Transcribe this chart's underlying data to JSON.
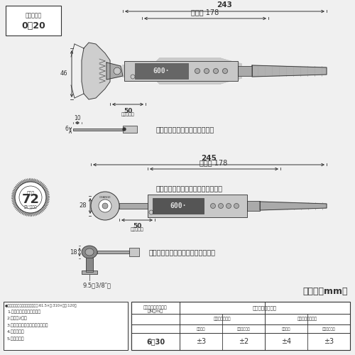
{
  "bg_color": "#f0f0f0",
  "line_color": "#333333",
  "white": "#ffffff",
  "gray_light": "#c8c8c8",
  "gray_mid": "#aaaaaa",
  "gray_dark": "#888888",
  "box_text1": "口開き寸法",
  "box_text2": "0～20",
  "dim_243": "243",
  "dim_245": "245",
  "dim_178_1": "有効長 178",
  "dim_178_2": "有効長 178",
  "dim_46": "46",
  "dim_50_1": "50",
  "dim_50_2": "50",
  "label_head1": "頭部有効長",
  "label_head2": "頭部有効長",
  "dim_10": "10",
  "dim_6": "6",
  "dim_28": "28",
  "dim_18": "18",
  "dim_9_5": "9.5（3/8″）",
  "label_monkey": "モンキ形トルクヘッドセット時",
  "label_ratchet": "ラチェット形トルクヘッドセット時",
  "gear_label": "ギア数",
  "gear_num": "72",
  "gear_sub": "（5°送り）",
  "unit_label": "【単位：mm】",
  "set_title": "●セット内容（専用ケース付　高さ:61.5×幅:310×奥行:120）",
  "set_line1": "1.本品（トルクハンドル）",
  "set_line2": "2.電池（2本）",
  "set_line3": "3.バッテリーカバー用ドライバー",
  "set_line4": "4.校正証明書",
  "set_line5": "5.取扱説明書",
  "tbl_h1c1": "トルク精度保証範囲",
  "tbl_h1c1b": "（N・m）",
  "tbl_h1c2": "トルク精度（％）",
  "tbl_h2c2": "時計回り（右）",
  "tbl_h2c3": "反時計回り（左）",
  "tbl_h3_m1": "モンキ形",
  "tbl_h3_r1": "ラチェット形",
  "tbl_h3_m2": "モンキ形",
  "tbl_h3_r2": "ラチェット形",
  "tbl_range": "6～30",
  "tbl_v1": "±3",
  "tbl_v2": "±2",
  "tbl_v3": "±4",
  "tbl_v4": "±3"
}
